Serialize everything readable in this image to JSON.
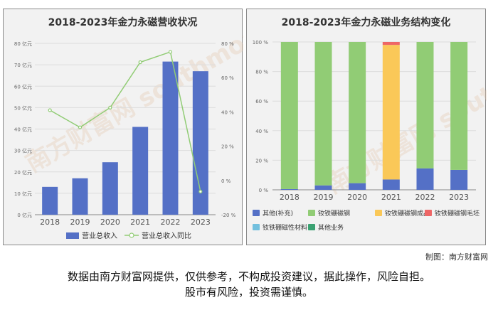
{
  "left": {
    "title": "2018-2023年金力永磁营收状况",
    "chart_data": {
      "type": "bar",
      "title": "2018-2023年金力永磁营收状况",
      "categories": [
        "2018",
        "2019",
        "2020",
        "2021",
        "2022",
        "2023"
      ],
      "series": [
        {
          "name": "营业总收入",
          "type": "bar",
          "axis": "left",
          "unit": "亿元",
          "color": "#5470c6",
          "values": [
            13,
            17,
            24.5,
            41,
            71.5,
            67
          ]
        },
        {
          "name": "营业总收入同比",
          "type": "line",
          "axis": "right",
          "unit": "%",
          "color": "#91cc75",
          "values": [
            41,
            31,
            42.5,
            69,
            75,
            -6.5
          ]
        }
      ],
      "y_left": {
        "min": 0,
        "max": 80,
        "ticks": [
          "0 亿元",
          "10 亿元",
          "20 亿元",
          "30 亿元",
          "40 亿元",
          "50 亿元",
          "60 亿元",
          "70 亿元",
          "80 亿元"
        ]
      },
      "y_right": {
        "min": -20,
        "max": 80,
        "ticks": [
          "-20 %",
          "0 %",
          "20 %",
          "40 %",
          "60 %",
          "80 %"
        ]
      },
      "grid": true,
      "legend_position": "bottom"
    }
  },
  "right": {
    "title": "2018-2023年金力永磁业务结构变化",
    "chart_data": {
      "type": "bar",
      "stacked": true,
      "title": "2018-2023年金力永磁业务结构变化",
      "categories": [
        "2018",
        "2019",
        "2020",
        "2021",
        "2022",
        "2023"
      ],
      "series": [
        {
          "name": "其他(补充)",
          "color": "#5470c6",
          "values": [
            0.5,
            3,
            4.5,
            7,
            14.5,
            13.5
          ]
        },
        {
          "name": "钕铁硼磁钢",
          "color": "#91cc75",
          "values": [
            99.5,
            97,
            95.5,
            0,
            85.5,
            86.5
          ]
        },
        {
          "name": "钕铁硼磁钢成品",
          "color": "#fac858",
          "values": [
            0,
            0,
            0,
            91,
            0,
            0
          ]
        },
        {
          "name": "钕铁硼磁钢毛坯",
          "color": "#ee6666",
          "values": [
            0,
            0,
            0,
            2,
            0,
            0
          ]
        },
        {
          "name": "钕铁硼磁性材料",
          "color": "#73c0de",
          "values": [
            0,
            0,
            0,
            0,
            0,
            0
          ]
        },
        {
          "name": "其他业务",
          "color": "#3ba272",
          "values": [
            0,
            0,
            0,
            0,
            0,
            0
          ]
        }
      ],
      "y": {
        "min": 0,
        "max": 100,
        "ticks": [
          "0 %",
          "20 %",
          "40 %",
          "60 %",
          "80 %",
          "100 %"
        ]
      },
      "grid": true,
      "legend_position": "bottom"
    }
  },
  "credit": "制图：南方财富网",
  "disclaimer_line1": "数据由南方财富网提供，仅供参考，不构成投资建议，据此操作，风险自担。",
  "disclaimer_line2": "股市有风险，投资需谨慎。",
  "watermark": "南方财富网 southmoney.com"
}
